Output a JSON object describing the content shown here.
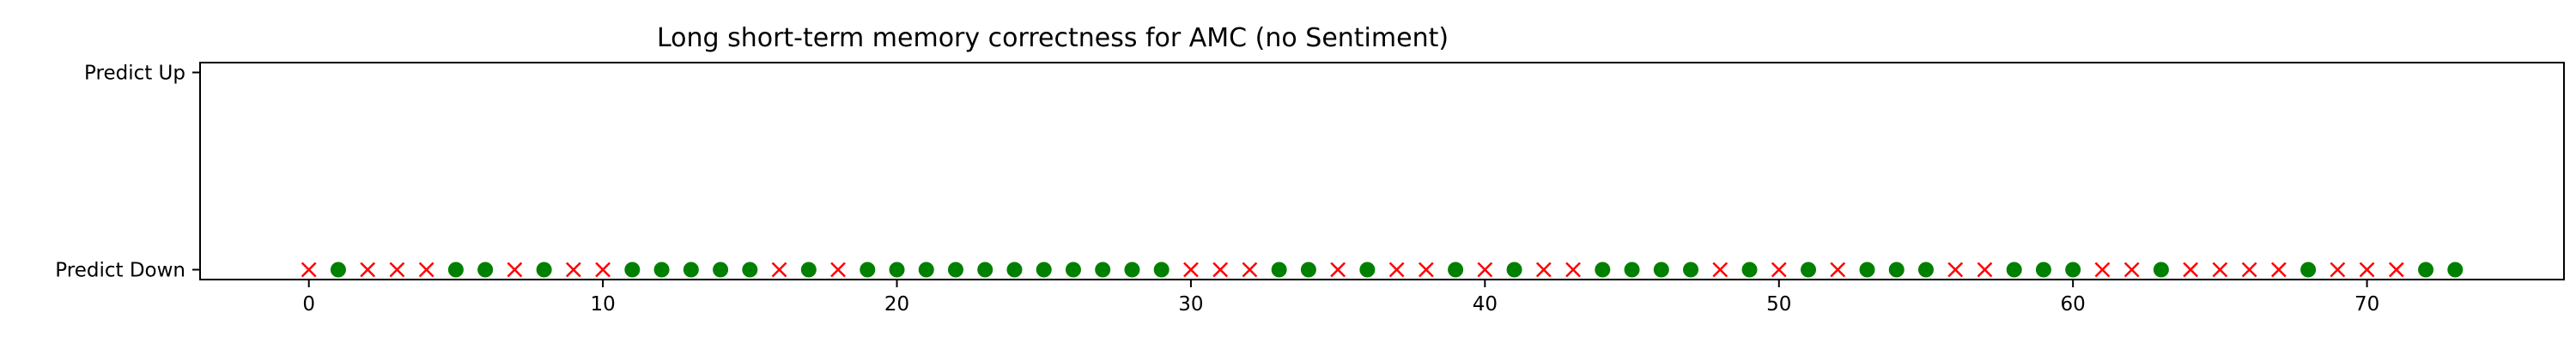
{
  "chart_data": {
    "type": "scatter",
    "title": "Long short-term memory correctness for AMC (no Sentiment)",
    "xlabel": "",
    "ylabel": "",
    "xlim": [
      -3.7,
      76.7
    ],
    "ylim": [
      -0.05,
      1.05
    ],
    "x_ticks": [
      0,
      10,
      20,
      30,
      40,
      50,
      60,
      70
    ],
    "y_ticks": [
      {
        "value": 0,
        "label": "Predict Down"
      },
      {
        "value": 1,
        "label": "Predict Up"
      }
    ],
    "grid": false,
    "legend": "none",
    "colors": {
      "correct": "#008000",
      "incorrect": "#ff0000"
    },
    "marker_kinds": {
      "correct": "circle",
      "incorrect": "x-mark"
    },
    "series": [
      {
        "kind": "correct",
        "x": [
          1,
          5,
          6,
          8,
          11,
          12,
          13,
          14,
          15,
          17,
          19,
          20,
          21,
          22,
          23,
          24,
          25,
          26,
          27,
          28,
          29,
          33,
          34,
          36,
          39,
          41,
          44,
          45,
          46,
          47,
          49,
          51,
          53,
          54,
          55,
          58,
          59,
          60,
          63,
          68,
          72,
          73
        ],
        "y": [
          0,
          0,
          0,
          0,
          0,
          0,
          0,
          0,
          0,
          0,
          0,
          0,
          0,
          0,
          0,
          0,
          0,
          0,
          0,
          0,
          0,
          0,
          0,
          0,
          0,
          0,
          0,
          0,
          0,
          0,
          0,
          0,
          0,
          0,
          0,
          0,
          0,
          0,
          0,
          0,
          0,
          0
        ]
      },
      {
        "kind": "incorrect",
        "x": [
          0,
          2,
          3,
          4,
          7,
          9,
          10,
          16,
          18,
          30,
          31,
          32,
          35,
          37,
          38,
          40,
          42,
          43,
          48,
          50,
          52,
          56,
          57,
          61,
          62,
          64,
          65,
          66,
          67,
          69,
          70,
          71
        ],
        "y": [
          0,
          0,
          0,
          0,
          0,
          0,
          0,
          0,
          0,
          0,
          0,
          0,
          0,
          0,
          0,
          0,
          0,
          0,
          0,
          0,
          0,
          0,
          0,
          0,
          0,
          0,
          0,
          0,
          0,
          0,
          0,
          0
        ]
      }
    ]
  }
}
